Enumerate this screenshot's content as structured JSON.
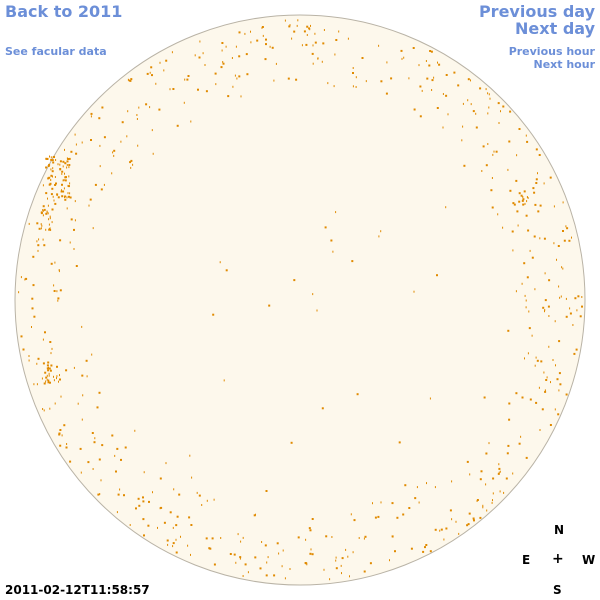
{
  "nav": {
    "back": "Back to 2011",
    "facular": "See facular data",
    "prev_day": "Previous day",
    "next_day": "Next day",
    "prev_hour": "Previous hour",
    "next_hour": "Next hour"
  },
  "compass": {
    "n": "N",
    "e": "E",
    "center": "+",
    "w": "W",
    "s": "S"
  },
  "timestamp": "2011-02-12T11:58:57",
  "colors": {
    "disk_fill": "#fdf8ec",
    "disk_stroke": "#b9b3a6",
    "facula": "#e08a00",
    "link": "#6c8fd8"
  }
}
